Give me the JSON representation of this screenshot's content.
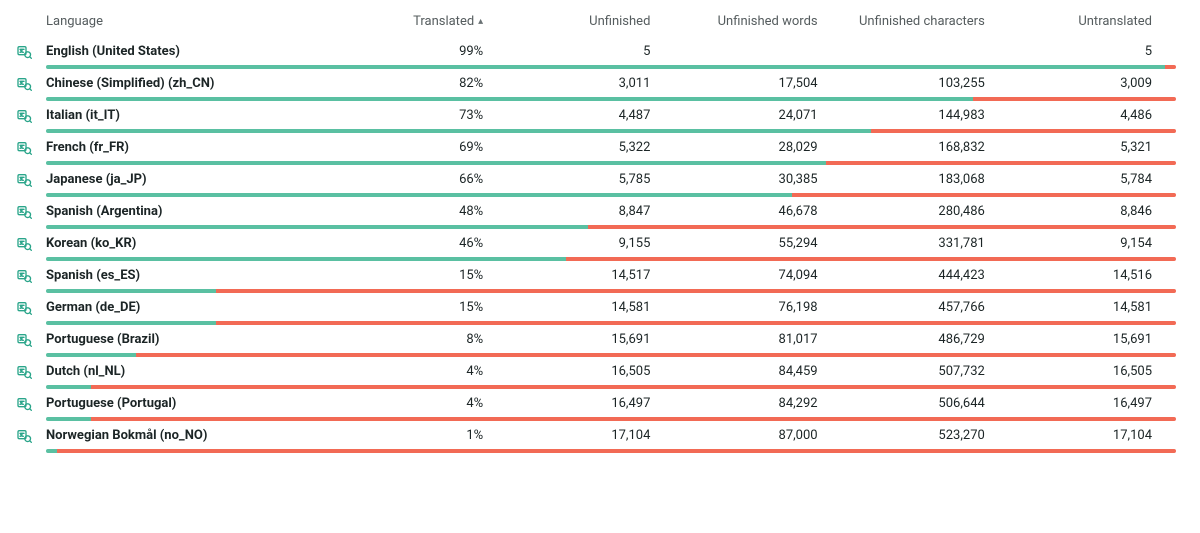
{
  "colors": {
    "done": "#5ac0a2",
    "undone": "#f26a55",
    "icon": "#2aa58a",
    "header_text": "#555c5e",
    "text": "#1c2526",
    "background": "#ffffff"
  },
  "columns": {
    "language": "Language",
    "translated": "Translated",
    "unfinished": "Unfinished",
    "unfinished_words": "Unfinished words",
    "unfinished_chars": "Unfinished characters",
    "untranslated": "Untranslated"
  },
  "sort": {
    "column": "translated",
    "direction": "asc",
    "indicator": "▴"
  },
  "rows": [
    {
      "language": "English (United States)",
      "translated_pct": 99,
      "translated": "99%",
      "unfinished": "5",
      "unfinished_words": "",
      "unfinished_chars": "",
      "untranslated": "5"
    },
    {
      "language": "Chinese (Simplified) (zh_CN)",
      "translated_pct": 82,
      "translated": "82%",
      "unfinished": "3,011",
      "unfinished_words": "17,504",
      "unfinished_chars": "103,255",
      "untranslated": "3,009"
    },
    {
      "language": "Italian (it_IT)",
      "translated_pct": 73,
      "translated": "73%",
      "unfinished": "4,487",
      "unfinished_words": "24,071",
      "unfinished_chars": "144,983",
      "untranslated": "4,486"
    },
    {
      "language": "French (fr_FR)",
      "translated_pct": 69,
      "translated": "69%",
      "unfinished": "5,322",
      "unfinished_words": "28,029",
      "unfinished_chars": "168,832",
      "untranslated": "5,321"
    },
    {
      "language": "Japanese (ja_JP)",
      "translated_pct": 66,
      "translated": "66%",
      "unfinished": "5,785",
      "unfinished_words": "30,385",
      "unfinished_chars": "183,068",
      "untranslated": "5,784"
    },
    {
      "language": "Spanish (Argentina)",
      "translated_pct": 48,
      "translated": "48%",
      "unfinished": "8,847",
      "unfinished_words": "46,678",
      "unfinished_chars": "280,486",
      "untranslated": "8,846"
    },
    {
      "language": "Korean (ko_KR)",
      "translated_pct": 46,
      "translated": "46%",
      "unfinished": "9,155",
      "unfinished_words": "55,294",
      "unfinished_chars": "331,781",
      "untranslated": "9,154"
    },
    {
      "language": "Spanish (es_ES)",
      "translated_pct": 15,
      "translated": "15%",
      "unfinished": "14,517",
      "unfinished_words": "74,094",
      "unfinished_chars": "444,423",
      "untranslated": "14,516"
    },
    {
      "language": "German (de_DE)",
      "translated_pct": 15,
      "translated": "15%",
      "unfinished": "14,581",
      "unfinished_words": "76,198",
      "unfinished_chars": "457,766",
      "untranslated": "14,581"
    },
    {
      "language": "Portuguese (Brazil)",
      "translated_pct": 8,
      "translated": "8%",
      "unfinished": "15,691",
      "unfinished_words": "81,017",
      "unfinished_chars": "486,729",
      "untranslated": "15,691"
    },
    {
      "language": "Dutch (nl_NL)",
      "translated_pct": 4,
      "translated": "4%",
      "unfinished": "16,505",
      "unfinished_words": "84,459",
      "unfinished_chars": "507,732",
      "untranslated": "16,505"
    },
    {
      "language": "Portuguese (Portugal)",
      "translated_pct": 4,
      "translated": "4%",
      "unfinished": "16,497",
      "unfinished_words": "84,292",
      "unfinished_chars": "506,644",
      "untranslated": "16,497"
    },
    {
      "language": "Norwegian Bokmål (no_NO)",
      "translated_pct": 1,
      "translated": "1%",
      "unfinished": "17,104",
      "unfinished_words": "87,000",
      "unfinished_chars": "523,270",
      "untranslated": "17,104"
    }
  ]
}
